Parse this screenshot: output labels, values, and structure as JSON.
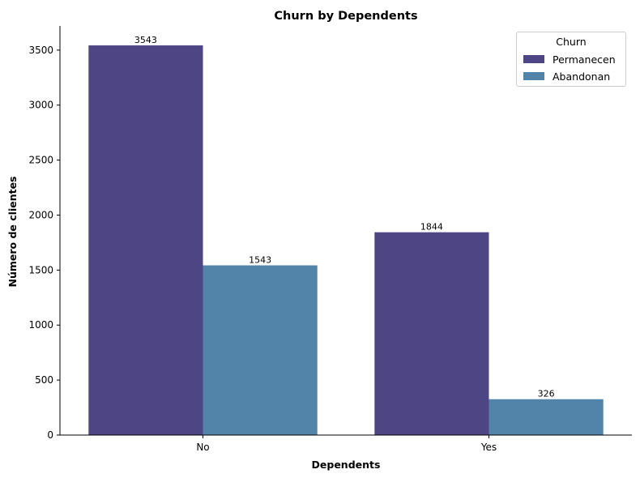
{
  "chart_data": {
    "type": "bar",
    "title": "Churn by Dependents",
    "xlabel": "Dependents",
    "ylabel": "Número de clientes",
    "categories": [
      "No",
      "Yes"
    ],
    "series": [
      {
        "name": "Permanecen",
        "color": "#4e4684",
        "values": [
          3543,
          1844
        ]
      },
      {
        "name": "Abandonan",
        "color": "#5283a8",
        "values": [
          1543,
          326
        ]
      }
    ],
    "ylim": [
      0,
      3720
    ],
    "yticks": [
      0,
      500,
      1000,
      1500,
      2000,
      2500,
      3000,
      3500
    ],
    "legend": {
      "title": "Churn",
      "position": "top-right"
    },
    "grid": false
  }
}
